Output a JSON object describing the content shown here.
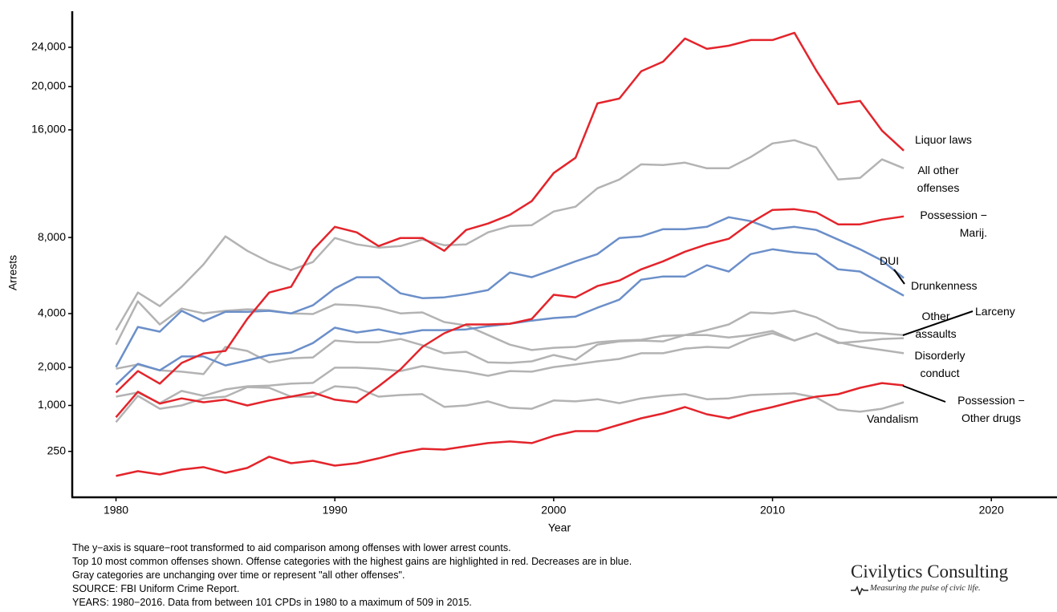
{
  "chart_data": {
    "type": "line",
    "y_label": "Arrests",
    "x_label": "Year",
    "y_scale": "sqrt",
    "xlim": [
      1978,
      2023
    ],
    "xticks": [
      1980,
      1990,
      2000,
      2010,
      2020
    ],
    "ylim": [
      0,
      28000
    ],
    "yticks": [
      250,
      {
        "value": 1000,
        "label": "1,000"
      },
      {
        "value": 2000,
        "label": "2,000"
      },
      {
        "value": 4000,
        "label": "4,000"
      },
      {
        "value": 8000,
        "label": "8,000"
      },
      {
        "value": 16000,
        "label": "16,000"
      },
      {
        "value": 20000,
        "label": "20,000"
      },
      {
        "value": 24000,
        "label": "24,000"
      }
    ],
    "grid": false,
    "x": [
      1980,
      1981,
      1982,
      1983,
      1984,
      1985,
      1986,
      1987,
      1988,
      1989,
      1990,
      1991,
      1992,
      1993,
      1994,
      1995,
      1996,
      1997,
      1998,
      1999,
      2000,
      2001,
      2002,
      2003,
      2004,
      2005,
      2006,
      2007,
      2008,
      2009,
      2010,
      2011,
      2012,
      2013,
      2014,
      2015,
      2016
    ],
    "series": [
      {
        "name": "All other offenses",
        "color": "#b3b3b3",
        "values": [
          3310,
          4970,
          4330,
          5250,
          6430,
          8070,
          7200,
          6560,
          6120,
          6560,
          7970,
          7580,
          7390,
          7480,
          7870,
          7530,
          7580,
          8320,
          8720,
          8780,
          9680,
          10010,
          11320,
          11970,
          13140,
          13080,
          13270,
          12830,
          12830,
          13720,
          14840,
          15110,
          14510,
          11970,
          12090,
          13530,
          12830
        ]
      },
      {
        "name": "Larceny",
        "color": "#b3b3b3",
        "values": [
          2760,
          4550,
          3540,
          4220,
          4010,
          4120,
          4190,
          4150,
          4010,
          3980,
          4410,
          4370,
          4260,
          4010,
          4050,
          3640,
          3500,
          3120,
          2760,
          2570,
          2650,
          2680,
          2850,
          2910,
          2940,
          3090,
          3120,
          3310,
          3540,
          4050,
          4010,
          4120,
          3840,
          3380,
          3220,
          3190,
          3120
        ]
      },
      {
        "name": "Other assaults",
        "color": "#b3b3b3",
        "values": [
          1200,
          1300,
          1050,
          1340,
          1220,
          1380,
          1460,
          1480,
          1530,
          1550,
          1990,
          1990,
          1960,
          1890,
          2040,
          1940,
          1870,
          1750,
          1890,
          1870,
          2010,
          2090,
          2190,
          2270,
          2460,
          2460,
          2620,
          2680,
          2650,
          3000,
          3190,
          2910,
          3190,
          2820,
          2880,
          2970,
          3000
        ]
      },
      {
        "name": "Disorderly conduct",
        "color": "#b3b3b3",
        "values": [
          1960,
          2090,
          1910,
          1870,
          1800,
          2680,
          2540,
          2160,
          2290,
          2320,
          2910,
          2850,
          2850,
          2970,
          2740,
          2460,
          2510,
          2160,
          2140,
          2190,
          2400,
          2240,
          2760,
          2880,
          2910,
          2880,
          3120,
          3120,
          3030,
          3120,
          3280,
          2910,
          3190,
          2850,
          2680,
          2570,
          2460
        ]
      },
      {
        "name": "Vandalism",
        "color": "#b3b3b3",
        "values": [
          670,
          1220,
          930,
          1000,
          1160,
          1200,
          1440,
          1420,
          1200,
          1200,
          1460,
          1420,
          1200,
          1240,
          1260,
          970,
          1000,
          1090,
          950,
          930,
          1110,
          1090,
          1140,
          1050,
          1160,
          1220,
          1260,
          1140,
          1160,
          1240,
          1260,
          1280,
          1180,
          910,
          870,
          930,
          1070
        ]
      },
      {
        "name": "DUI",
        "color": "#6b8fc9",
        "values": [
          2010,
          3440,
          3250,
          4120,
          3670,
          4080,
          4080,
          4120,
          4010,
          4370,
          5170,
          5740,
          5740,
          4930,
          4700,
          4740,
          4890,
          5090,
          5990,
          5740,
          6160,
          6600,
          7010,
          7970,
          8070,
          8520,
          8520,
          8670,
          9300,
          9040,
          8520,
          8670,
          8470,
          7870,
          7290,
          6650,
          5700
        ]
      },
      {
        "name": "Drunkenness",
        "color": "#6b8fc9",
        "values": [
          1500,
          2110,
          1910,
          2350,
          2350,
          2060,
          2220,
          2400,
          2480,
          2820,
          3410,
          3220,
          3340,
          3160,
          3310,
          3310,
          3340,
          3470,
          3570,
          3700,
          3810,
          3870,
          4260,
          4630,
          5610,
          5780,
          5780,
          6380,
          6040,
          7010,
          7290,
          7110,
          7010,
          6160,
          6040,
          5410,
          4820
        ]
      },
      {
        "name": "Liquor laws",
        "color": "#e3242b",
        "values": [
          1300,
          1890,
          1530,
          2140,
          2450,
          2540,
          3770,
          4970,
          5250,
          7250,
          8670,
          8320,
          7480,
          7970,
          7970,
          7200,
          8470,
          8880,
          9460,
          10400,
          12460,
          13660,
          18390,
          18840,
          21510,
          22490,
          24950,
          23830,
          24170,
          24780,
          24780,
          25570,
          21590,
          18320,
          18620,
          15940,
          14240
        ]
      },
      {
        "name": "Possession − Marij.",
        "color": "#e3242b",
        "values": [
          760,
          1320,
          1040,
          1160,
          1070,
          1130,
          1000,
          1110,
          1200,
          1300,
          1130,
          1070,
          1460,
          1940,
          2680,
          3190,
          3540,
          3540,
          3570,
          3770,
          4860,
          4740,
          5290,
          5570,
          6160,
          6600,
          7150,
          7580,
          7920,
          8930,
          9790,
          9840,
          9620,
          8830,
          8830,
          9140,
          9350
        ]
      },
      {
        "name": "Possession − Other drugs",
        "color": "#e3242b",
        "values": [
          54,
          81,
          62,
          91,
          108,
          71,
          102,
          195,
          138,
          158,
          119,
          138,
          180,
          235,
          279,
          270,
          308,
          348,
          369,
          348,
          447,
          519,
          519,
          625,
          740,
          833,
          965,
          817,
          740,
          865,
          965,
          1089,
          1200,
          1259,
          1420,
          1547,
          1483
        ]
      }
    ]
  },
  "notes": [
    "The y−axis is square−root transformed to aid comparison among offenses with lower arrest counts.",
    "Top 10 most common offenses shown. Offense categories with the highest gains are highlighted in red. Decreases are in blue.",
    "Gray categories are unchanging over time or represent \"all other offenses\".",
    "SOURCE:  FBI Uniform Crime Report.",
    "YEARS: 1980−2016. Data from between 101 CPDs in 1980 to a maximum of 509 in 2015."
  ],
  "brand": {
    "name": "Civilytics Consulting",
    "tagline": "Measuring the pulse of civic life."
  }
}
